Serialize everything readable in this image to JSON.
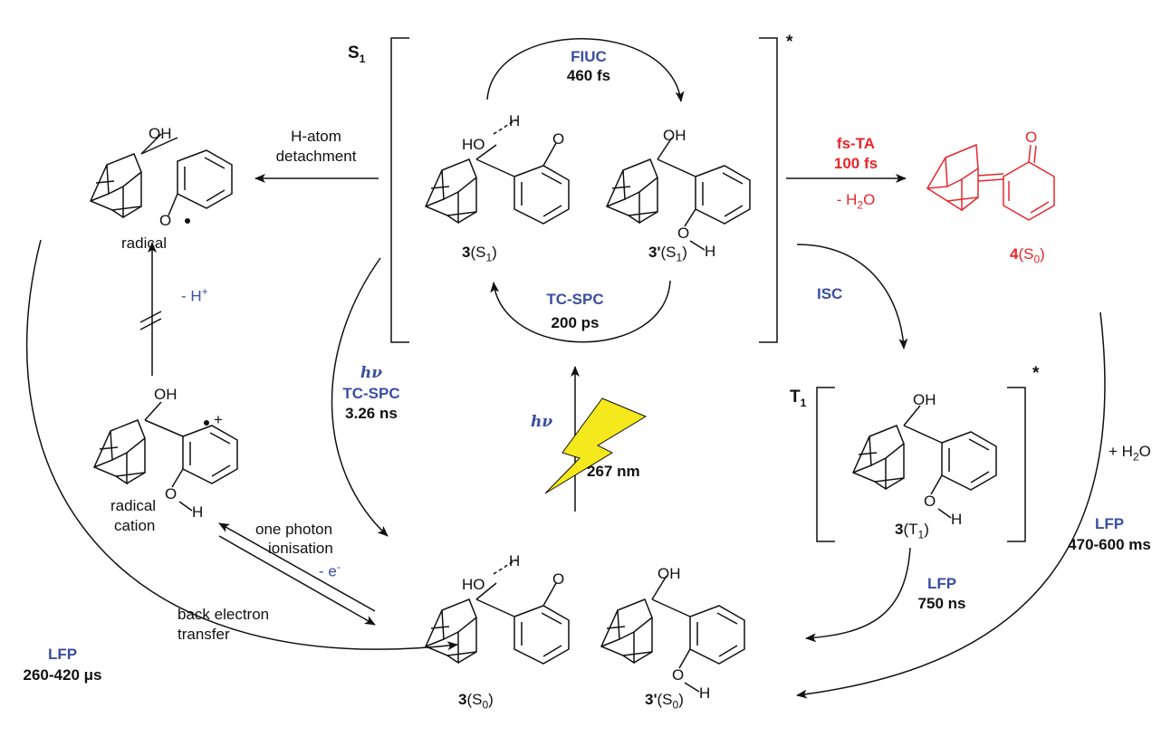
{
  "state_labels": {
    "s1": "S",
    "s1_sub": "1",
    "t1": "T",
    "t1_sub": "1",
    "star": "*"
  },
  "processes": {
    "fiuc": {
      "name": "FIUC",
      "time": "460 fs"
    },
    "tcspc_top": {
      "name": "TC-SPC",
      "time": "200 ps"
    },
    "fsta": {
      "name": "fs-TA",
      "time": "100 fs",
      "note": "- H",
      "note_sub": "2",
      "note_tail": "O"
    },
    "isc": {
      "name": "ISC"
    },
    "h_atom": {
      "line1": "H-atom",
      "line2": "detachment"
    },
    "deprot": {
      "text": "- H",
      "sup": "+"
    },
    "hv_left": {
      "hv": "hν",
      "name": "TC-SPC",
      "time": "3.26 ns"
    },
    "excite": {
      "hv": "hν",
      "wavelength": "267 nm"
    },
    "ionisation": {
      "line1": "one photon",
      "line2": "ionisation",
      "line3": "- e",
      "sup": "-"
    },
    "bet": {
      "line1": "back electron",
      "line2": "transfer"
    },
    "lfp_left": {
      "name": "LFP",
      "time": "260-420 μs"
    },
    "lfp_t1": {
      "name": "LFP",
      "time": "750 ns"
    },
    "lfp_right": {
      "name": "LFP",
      "time": "470-600 ms"
    },
    "water": {
      "pre": "+ H",
      "sub": "2",
      "post": "O"
    }
  },
  "species": {
    "s1_3": {
      "num": "3",
      "open": "(S",
      "sub": "1",
      "close": ")"
    },
    "s1_3p": {
      "num": "3'",
      "open": "(S",
      "sub": "1",
      "close": ")"
    },
    "product_4": {
      "num": "4",
      "open": "(S",
      "sub": "0",
      "close": ")"
    },
    "t1_3": {
      "num": "3",
      "open": "(T",
      "sub": "1",
      "close": ")"
    },
    "s0_3": {
      "num": "3",
      "open": "(S",
      "sub": "0",
      "close": ")"
    },
    "s0_3p": {
      "num": "3'",
      "open": "(S",
      "sub": "0",
      "close": ")"
    },
    "radical": "radical",
    "radical_cation_1": "radical",
    "radical_cation_2": "cation"
  },
  "atoms": {
    "oh": "OH",
    "ho": "HO",
    "h": "H",
    "o": "O",
    "plus": "+"
  },
  "colors": {
    "blue": "#3a4fa0",
    "red": "#e8262b",
    "yellow": "#f5e81c",
    "black": "#111111"
  }
}
